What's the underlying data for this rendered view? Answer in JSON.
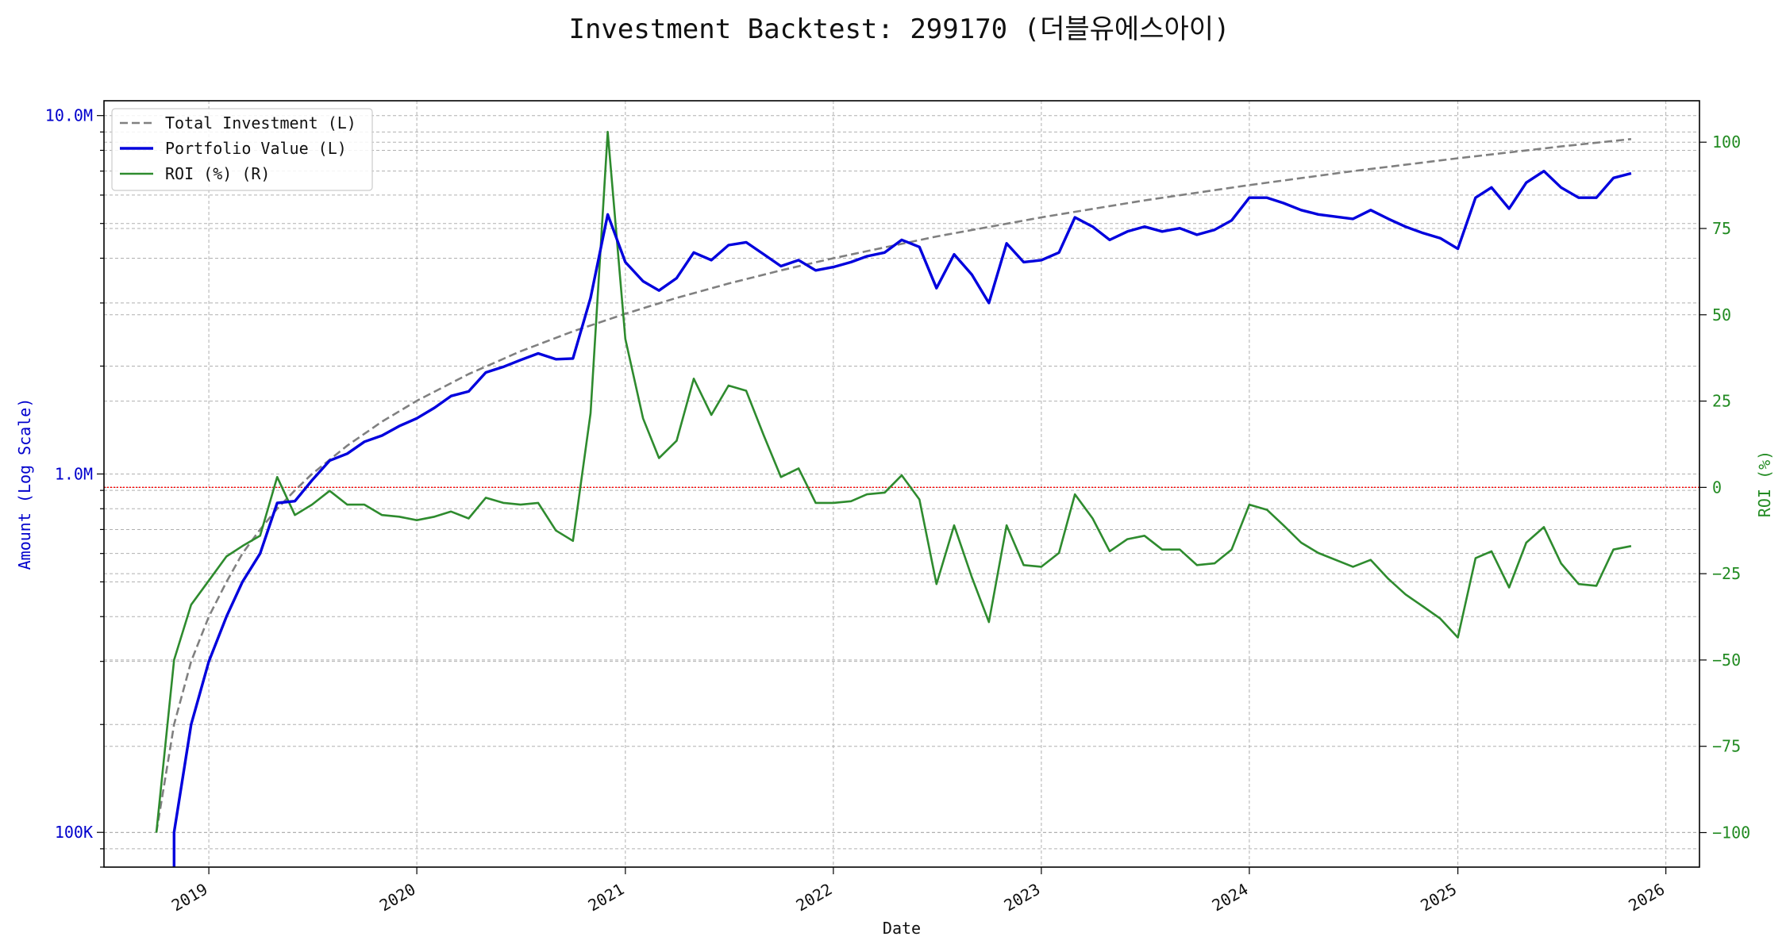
{
  "chart_data": {
    "type": "line",
    "title": "Investment Backtest: 299170 (더블유에스아이)",
    "xlabel": "Date",
    "ylabel_left": "Amount (Log Scale)",
    "ylabel_right": "ROI (%)",
    "y_left_scale": "log",
    "y_left_range": [
      80000,
      11000000
    ],
    "y_right_range": [
      -110,
      112
    ],
    "x_range": [
      "2018-07-01",
      "2026-03-01"
    ],
    "grid": true,
    "legend_position": "upper-left",
    "x_ticks": [
      {
        "label": "2019",
        "date": "2019-01-01"
      },
      {
        "label": "2020",
        "date": "2020-01-01"
      },
      {
        "label": "2021",
        "date": "2021-01-01"
      },
      {
        "label": "2022",
        "date": "2022-01-01"
      },
      {
        "label": "2023",
        "date": "2023-01-01"
      },
      {
        "label": "2024",
        "date": "2024-01-01"
      },
      {
        "label": "2025",
        "date": "2025-01-01"
      },
      {
        "label": "2026",
        "date": "2026-01-01"
      }
    ],
    "y_left_ticks": [
      {
        "label": "100K",
        "value": 100000
      },
      {
        "label": "1.0M",
        "value": 1000000
      },
      {
        "label": "10.0M",
        "value": 10000000
      }
    ],
    "y_right_ticks": [
      {
        "label": "−100",
        "value": -100
      },
      {
        "label": "−75",
        "value": -75
      },
      {
        "label": "−50",
        "value": -50
      },
      {
        "label": "−25",
        "value": -25
      },
      {
        "label": "0",
        "value": 0
      },
      {
        "label": "25",
        "value": 25
      },
      {
        "label": "50",
        "value": 50
      },
      {
        "label": "75",
        "value": 75
      },
      {
        "label": "100",
        "value": 100
      }
    ],
    "reference_line": {
      "axis": "right",
      "value": 0,
      "color": "#ff0000",
      "style": "dotted"
    },
    "series": [
      {
        "name": "Total Investment (L)",
        "axis": "left",
        "color": "#808080",
        "style": "dashed",
        "x": [
          "2018-10-01",
          "2018-11-01",
          "2018-12-01",
          "2019-01-01",
          "2019-02-01",
          "2019-03-01",
          "2019-04-01",
          "2019-05-01",
          "2019-06-01",
          "2019-07-01",
          "2019-09-01",
          "2019-11-01",
          "2020-01-01",
          "2020-04-01",
          "2020-07-01",
          "2020-10-01",
          "2021-01-01",
          "2021-04-01",
          "2021-07-01",
          "2021-10-01",
          "2022-01-01",
          "2022-07-01",
          "2023-01-01",
          "2023-07-01",
          "2024-01-01",
          "2024-07-01",
          "2025-01-01",
          "2025-07-01",
          "2025-11-01"
        ],
        "values": [
          100000,
          200000,
          300000,
          400000,
          500000,
          600000,
          700000,
          800000,
          900000,
          1000000,
          1200000,
          1400000,
          1600000,
          1900000,
          2200000,
          2500000,
          2800000,
          3100000,
          3400000,
          3700000,
          4000000,
          4600000,
          5200000,
          5800000,
          6400000,
          7000000,
          7600000,
          8200000,
          8600000
        ]
      },
      {
        "name": "Portfolio Value (L)",
        "axis": "left",
        "color": "#0000dd",
        "style": "solid",
        "x": [
          "2018-11-01",
          "2018-11-01",
          "2018-12-01",
          "2019-01-01",
          "2019-02-01",
          "2019-03-01",
          "2019-04-01",
          "2019-05-01",
          "2019-06-01",
          "2019-07-01",
          "2019-08-01",
          "2019-09-01",
          "2019-10-01",
          "2019-11-01",
          "2019-12-01",
          "2020-01-01",
          "2020-02-01",
          "2020-03-01",
          "2020-04-01",
          "2020-05-01",
          "2020-06-01",
          "2020-07-01",
          "2020-08-01",
          "2020-09-01",
          "2020-10-01",
          "2020-11-01",
          "2020-12-01",
          "2021-01-01",
          "2021-02-01",
          "2021-03-01",
          "2021-04-01",
          "2021-05-01",
          "2021-06-01",
          "2021-07-01",
          "2021-08-01",
          "2021-09-01",
          "2021-10-01",
          "2021-11-01",
          "2021-12-01",
          "2022-01-01",
          "2022-02-01",
          "2022-03-01",
          "2022-04-01",
          "2022-05-01",
          "2022-06-01",
          "2022-07-01",
          "2022-08-01",
          "2022-09-01",
          "2022-10-01",
          "2022-11-01",
          "2022-12-01",
          "2023-01-01",
          "2023-02-01",
          "2023-03-01",
          "2023-04-01",
          "2023-05-01",
          "2023-06-01",
          "2023-07-01",
          "2023-08-01",
          "2023-09-01",
          "2023-10-01",
          "2023-11-01",
          "2023-12-01",
          "2024-01-01",
          "2024-02-01",
          "2024-03-01",
          "2024-04-01",
          "2024-05-01",
          "2024-07-01",
          "2024-08-01",
          "2024-09-01",
          "2024-10-01",
          "2024-11-01",
          "2024-12-01",
          "2025-01-01",
          "2025-02-01",
          "2025-03-01",
          "2025-04-01",
          "2025-05-01",
          "2025-06-01",
          "2025-07-01",
          "2025-08-01",
          "2025-09-01",
          "2025-10-01",
          "2025-11-01"
        ],
        "values": [
          70000,
          100000,
          200000,
          300000,
          400000,
          500000,
          600000,
          830000,
          840000,
          960000,
          1090000,
          1140000,
          1230000,
          1280000,
          1360000,
          1430000,
          1530000,
          1650000,
          1700000,
          1920000,
          1990000,
          2080000,
          2170000,
          2090000,
          2100000,
          3100000,
          5300000,
          3900000,
          3450000,
          3250000,
          3520000,
          4150000,
          3950000,
          4350000,
          4430000,
          4100000,
          3800000,
          3950000,
          3700000,
          3780000,
          3900000,
          4050000,
          4150000,
          4500000,
          4300000,
          3300000,
          4100000,
          3600000,
          3000000,
          4400000,
          3900000,
          3950000,
          4150000,
          5200000,
          4900000,
          4500000,
          4750000,
          4900000,
          4750000,
          4850000,
          4650000,
          4800000,
          5100000,
          5900000,
          5900000,
          5700000,
          5450000,
          5300000,
          5150000,
          5450000,
          5150000,
          4900000,
          4700000,
          4550000,
          4250000,
          5900000,
          6300000,
          5500000,
          6500000,
          7000000,
          6300000,
          5900000,
          5900000,
          6700000,
          6900000
        ]
      },
      {
        "name": "ROI (%) (R)",
        "axis": "right",
        "color": "#2e8b2e",
        "style": "solid",
        "x": [
          "2018-10-01",
          "2018-11-01",
          "2018-12-01",
          "2019-01-01",
          "2019-02-01",
          "2019-03-01",
          "2019-04-01",
          "2019-05-01",
          "2019-06-01",
          "2019-07-01",
          "2019-08-01",
          "2019-09-01",
          "2019-10-01",
          "2019-11-01",
          "2019-12-01",
          "2020-01-01",
          "2020-02-01",
          "2020-03-01",
          "2020-04-01",
          "2020-05-01",
          "2020-06-01",
          "2020-07-01",
          "2020-08-01",
          "2020-09-01",
          "2020-10-01",
          "2020-11-01",
          "2020-12-01",
          "2021-01-01",
          "2021-02-01",
          "2021-03-01",
          "2021-04-01",
          "2021-05-01",
          "2021-06-01",
          "2021-07-01",
          "2021-08-01",
          "2021-09-01",
          "2021-10-01",
          "2021-11-01",
          "2021-12-01",
          "2022-01-01",
          "2022-02-01",
          "2022-03-01",
          "2022-04-01",
          "2022-05-01",
          "2022-06-01",
          "2022-07-01",
          "2022-08-01",
          "2022-09-01",
          "2022-10-01",
          "2022-11-01",
          "2022-12-01",
          "2023-01-01",
          "2023-02-01",
          "2023-03-01",
          "2023-04-01",
          "2023-05-01",
          "2023-06-01",
          "2023-07-01",
          "2023-08-01",
          "2023-09-01",
          "2023-10-01",
          "2023-11-01",
          "2023-12-01",
          "2024-01-01",
          "2024-02-01",
          "2024-03-01",
          "2024-04-01",
          "2024-05-01",
          "2024-07-01",
          "2024-08-01",
          "2024-09-01",
          "2024-10-01",
          "2024-11-01",
          "2024-12-01",
          "2025-01-01",
          "2025-02-01",
          "2025-03-01",
          "2025-04-01",
          "2025-05-01",
          "2025-06-01",
          "2025-07-01",
          "2025-08-01",
          "2025-09-01",
          "2025-10-01",
          "2025-11-01"
        ],
        "values": [
          -100,
          -50,
          -34,
          -27,
          -20,
          -17,
          -14,
          3,
          -8,
          -5,
          -1,
          -5,
          -5,
          -8,
          -8.5,
          -9.5,
          -8.5,
          -7,
          -9,
          -3,
          -4.5,
          -5,
          -4.5,
          -12.5,
          -15.5,
          21.5,
          103,
          43,
          20,
          8.5,
          13.5,
          31.5,
          21,
          29.5,
          28,
          15,
          3,
          5.5,
          -4.5,
          -4.5,
          -4,
          -2,
          -1.5,
          3.5,
          -3.5,
          -28,
          -11,
          -26,
          -39,
          -11,
          -22.5,
          -23,
          -19,
          -2,
          -9,
          -18.5,
          -15,
          -14,
          -18,
          -18,
          -22.5,
          -22,
          -18,
          -5,
          -6.5,
          -11,
          -16,
          -19,
          -23,
          -21,
          -26.5,
          -31,
          -34.5,
          -38,
          -43.5,
          -20.5,
          -18.5,
          -29,
          -16,
          -11.5,
          -22,
          -28,
          -28.5,
          -18,
          -17
        ]
      }
    ]
  }
}
